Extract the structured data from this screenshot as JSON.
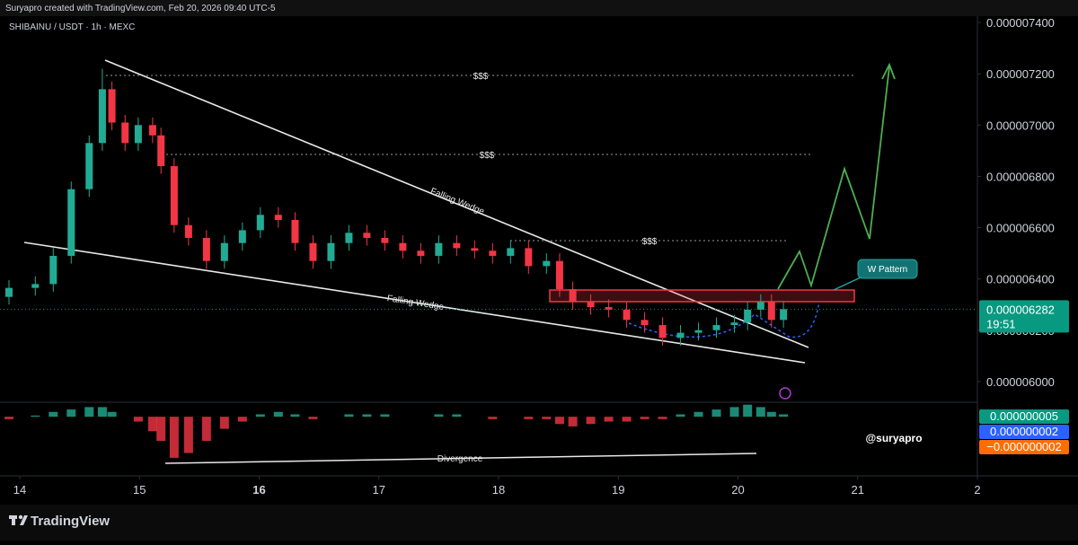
{
  "chart_data": {
    "type": "candlestick",
    "header": "Suryapro created with TradingView.com, Feb 20, 2026 09:40 UTC-5",
    "title": "SHIBAINU / USDT · 1h · MEXC",
    "brand": "TradingView",
    "watermark": "@suryapro",
    "up_color": "#22ab94",
    "down_color": "#f23645",
    "x": [
      13.91,
      14.13,
      14.28,
      14.43,
      14.58,
      14.69,
      14.77,
      14.88,
      14.99,
      15.11,
      15.18,
      15.29,
      15.41,
      15.56,
      15.71,
      15.86,
      16.01,
      16.16,
      16.3,
      16.45,
      16.6,
      16.75,
      16.9,
      17.05,
      17.2,
      17.35,
      17.5,
      17.65,
      17.8,
      17.95,
      18.1,
      18.25,
      18.4,
      18.51,
      18.62,
      18.77,
      18.92,
      19.07,
      19.22,
      19.37,
      19.52,
      19.67,
      19.82,
      19.97,
      20.08,
      20.19,
      20.28,
      20.38
    ],
    "open": [
      6.33e-06,
      6.365e-06,
      6.38e-06,
      6.49e-06,
      6.75e-06,
      6.93e-06,
      7.14e-06,
      7.01e-06,
      6.93e-06,
      7e-06,
      6.96e-06,
      6.84e-06,
      6.61e-06,
      6.56e-06,
      6.47e-06,
      6.54e-06,
      6.59e-06,
      6.65e-06,
      6.63e-06,
      6.54e-06,
      6.47e-06,
      6.54e-06,
      6.58e-06,
      6.56e-06,
      6.54e-06,
      6.51e-06,
      6.49e-06,
      6.54e-06,
      6.52e-06,
      6.51e-06,
      6.49e-06,
      6.52e-06,
      6.45e-06,
      6.47e-06,
      6.36e-06,
      6.31e-06,
      6.29e-06,
      6.28e-06,
      6.24e-06,
      6.22e-06,
      6.17e-06,
      6.19e-06,
      6.2e-06,
      6.22e-06,
      6.23e-06,
      6.28e-06,
      6.31e-06,
      6.24e-06
    ],
    "high": [
      6.395e-06,
      6.41e-06,
      6.52e-06,
      6.78e-06,
      6.96e-06,
      7.22e-06,
      7.17e-06,
      7.04e-06,
      7.03e-06,
      7.03e-06,
      6.99e-06,
      6.87e-06,
      6.64e-06,
      6.59e-06,
      6.57e-06,
      6.62e-06,
      6.68e-06,
      6.68e-06,
      6.66e-06,
      6.57e-06,
      6.57e-06,
      6.61e-06,
      6.61e-06,
      6.59e-06,
      6.57e-06,
      6.54e-06,
      6.57e-06,
      6.57e-06,
      6.55e-06,
      6.54e-06,
      6.55e-06,
      6.55e-06,
      6.5e-06,
      6.5e-06,
      6.39e-06,
      6.34e-06,
      6.32e-06,
      6.31e-06,
      6.27e-06,
      6.25e-06,
      6.22e-06,
      6.23e-06,
      6.25e-06,
      6.26e-06,
      6.31e-06,
      6.34e-06,
      6.34e-06,
      6.312e-06
    ],
    "low": [
      6.3e-06,
      6.335e-06,
      6.35e-06,
      6.46e-06,
      6.72e-06,
      6.9e-06,
      6.98e-06,
      6.9e-06,
      6.9e-06,
      6.93e-06,
      6.81e-06,
      6.58e-06,
      6.53e-06,
      6.44e-06,
      6.44e-06,
      6.51e-06,
      6.56e-06,
      6.6e-06,
      6.51e-06,
      6.44e-06,
      6.44e-06,
      6.51e-06,
      6.53e-06,
      6.51e-06,
      6.48e-06,
      6.46e-06,
      6.46e-06,
      6.49e-06,
      6.48e-06,
      6.46e-06,
      6.46e-06,
      6.42e-06,
      6.42e-06,
      6.33e-06,
      6.28e-06,
      6.26e-06,
      6.25e-06,
      6.21e-06,
      6.19e-06,
      6.14e-06,
      6.14e-06,
      6.16e-06,
      6.17e-06,
      6.19e-06,
      6.2e-06,
      6.25e-06,
      6.21e-06,
      6.21e-06
    ],
    "close": [
      6.365e-06,
      6.38e-06,
      6.49e-06,
      6.75e-06,
      6.93e-06,
      7.14e-06,
      7.01e-06,
      6.93e-06,
      7e-06,
      6.96e-06,
      6.84e-06,
      6.61e-06,
      6.56e-06,
      6.47e-06,
      6.54e-06,
      6.59e-06,
      6.65e-06,
      6.63e-06,
      6.54e-06,
      6.47e-06,
      6.54e-06,
      6.58e-06,
      6.56e-06,
      6.54e-06,
      6.51e-06,
      6.49e-06,
      6.54e-06,
      6.52e-06,
      6.51e-06,
      6.49e-06,
      6.52e-06,
      6.45e-06,
      6.47e-06,
      6.36e-06,
      6.31e-06,
      6.29e-06,
      6.28e-06,
      6.24e-06,
      6.22e-06,
      6.17e-06,
      6.19e-06,
      6.2e-06,
      6.22e-06,
      6.23e-06,
      6.28e-06,
      6.31e-06,
      6.24e-06,
      6.282e-06
    ],
    "xlim": [
      13.835,
      22.0
    ],
    "xticks": [
      14,
      15,
      16,
      17,
      18,
      19,
      20,
      21,
      {
        "value": 22,
        "label": "2"
      }
    ],
    "ylim": [
      5.919e-06,
      7.488e-06
    ],
    "yticks": [
      {
        "value": 7.4e-06,
        "label": "0.000007400"
      },
      {
        "value": 7.2e-06,
        "label": "0.000007200"
      },
      {
        "value": 7e-06,
        "label": "0.000007000"
      },
      {
        "value": 6.8e-06,
        "label": "0.000006800"
      },
      {
        "value": 6.6e-06,
        "label": "0.000006600"
      },
      {
        "value": 6.4e-06,
        "label": "0.000006400"
      },
      {
        "value": 6.2e-06,
        "label": "0.000006200"
      },
      {
        "value": 6e-06,
        "label": "0.000006000"
      }
    ],
    "last_price": {
      "value": 6.282e-06,
      "label": "0.000006282",
      "countdown": "19:51",
      "color": "#089981"
    },
    "annotations": {
      "liquidity": [
        "$$$",
        "$$$",
        "$$$"
      ],
      "upper_wedge": "Falling Wedge",
      "lower_wedge": "Falling Wedge",
      "w_pattern": "W Pattern",
      "divergence": "Divergence"
    },
    "macd": {
      "ylim": [
        -2e-08,
        6e-09
      ],
      "histogram": [
        -1e-09,
        5e-10,
        2e-09,
        3e-09,
        4e-09,
        4e-09,
        2e-09,
        0,
        -2e-09,
        -6e-09,
        -1e-08,
        -1.7e-08,
        -1.5e-08,
        -1e-08,
        -5e-09,
        -2e-09,
        1e-09,
        2e-09,
        1e-09,
        -1e-09,
        0,
        1e-09,
        1e-09,
        1e-09,
        0,
        0,
        1e-09,
        1e-09,
        0,
        -1e-09,
        0,
        -1e-09,
        -1e-09,
        -3e-09,
        -4e-09,
        -3e-09,
        -2e-09,
        -2e-09,
        -1e-09,
        -1e-09,
        1e-09,
        2e-09,
        3e-09,
        4e-09,
        5e-09,
        4e-09,
        2e-09,
        1e-09
      ],
      "readouts": [
        {
          "value": 5e-09,
          "label": "0.000000005",
          "color": "#089981"
        },
        {
          "value": 2e-09,
          "label": "0.000000002",
          "color": "#2962ff"
        },
        {
          "value": -2e-09,
          "label": "−0.000000002",
          "color": "#ff6d00"
        }
      ]
    }
  }
}
